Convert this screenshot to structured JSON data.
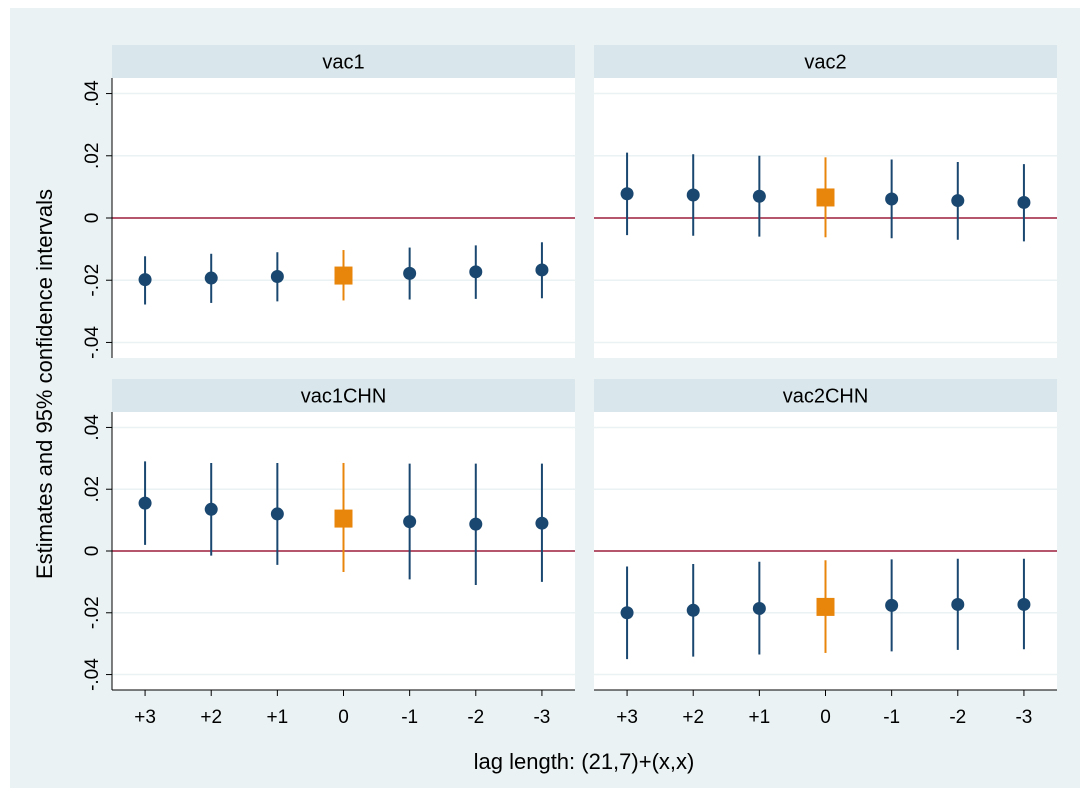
{
  "chart_data": {
    "type": "scatter",
    "layout": "2x2 facets",
    "ylabel": "Estimates and 95% confidence intervals",
    "xlabel": "lag length: (21,7)+(x,x)",
    "categories": [
      "+3",
      "+2",
      "+1",
      "0",
      "-1",
      "-2",
      "-3"
    ],
    "ylim": [
      -0.045,
      0.045
    ],
    "yticks": [
      0.04,
      0.02,
      0,
      -0.02,
      -0.04
    ],
    "ytick_labels": [
      ".04",
      ".02",
      "0",
      "-.02",
      "-.04"
    ],
    "reference_line": 0,
    "highlight_category": "0",
    "colors": {
      "background": "#eaf2f3",
      "panel": "#ffffff",
      "panel_header": "#d9e6eb",
      "point": "#1a476f",
      "highlight": "#e8860c",
      "zero_line": "#a0203d",
      "grid": "#eaf2f3"
    },
    "panels": [
      {
        "title": "vac1",
        "estimates": [
          -0.0198,
          -0.0193,
          -0.0188,
          -0.0185,
          -0.0178,
          -0.0173,
          -0.0167
        ],
        "lower": [
          -0.0278,
          -0.0273,
          -0.0268,
          -0.0265,
          -0.0262,
          -0.026,
          -0.0258
        ],
        "upper": [
          -0.0123,
          -0.0115,
          -0.011,
          -0.0103,
          -0.0095,
          -0.0088,
          -0.0078
        ]
      },
      {
        "title": "vac2",
        "estimates": [
          0.0078,
          0.0074,
          0.007,
          0.0066,
          0.0061,
          0.0056,
          0.005
        ],
        "lower": [
          -0.0055,
          -0.0057,
          -0.006,
          -0.0062,
          -0.0065,
          -0.007,
          -0.0075
        ],
        "upper": [
          0.021,
          0.0205,
          0.02,
          0.0195,
          0.0188,
          0.018,
          0.0173
        ]
      },
      {
        "title": "vac1CHN",
        "estimates": [
          0.0155,
          0.0135,
          0.012,
          0.0105,
          0.0095,
          0.0087,
          0.009
        ],
        "lower": [
          0.002,
          -0.0015,
          -0.0045,
          -0.0068,
          -0.0092,
          -0.011,
          -0.01
        ],
        "upper": [
          0.029,
          0.0285,
          0.0285,
          0.0285,
          0.0283,
          0.0283,
          0.0283
        ]
      },
      {
        "title": "vac2CHN",
        "estimates": [
          -0.02,
          -0.0192,
          -0.0186,
          -0.0181,
          -0.0176,
          -0.0173,
          -0.0173
        ],
        "lower": [
          -0.035,
          -0.0342,
          -0.0335,
          -0.033,
          -0.0325,
          -0.032,
          -0.0318
        ],
        "upper": [
          -0.005,
          -0.0042,
          -0.0035,
          -0.003,
          -0.0027,
          -0.0025,
          -0.0025
        ]
      }
    ]
  }
}
